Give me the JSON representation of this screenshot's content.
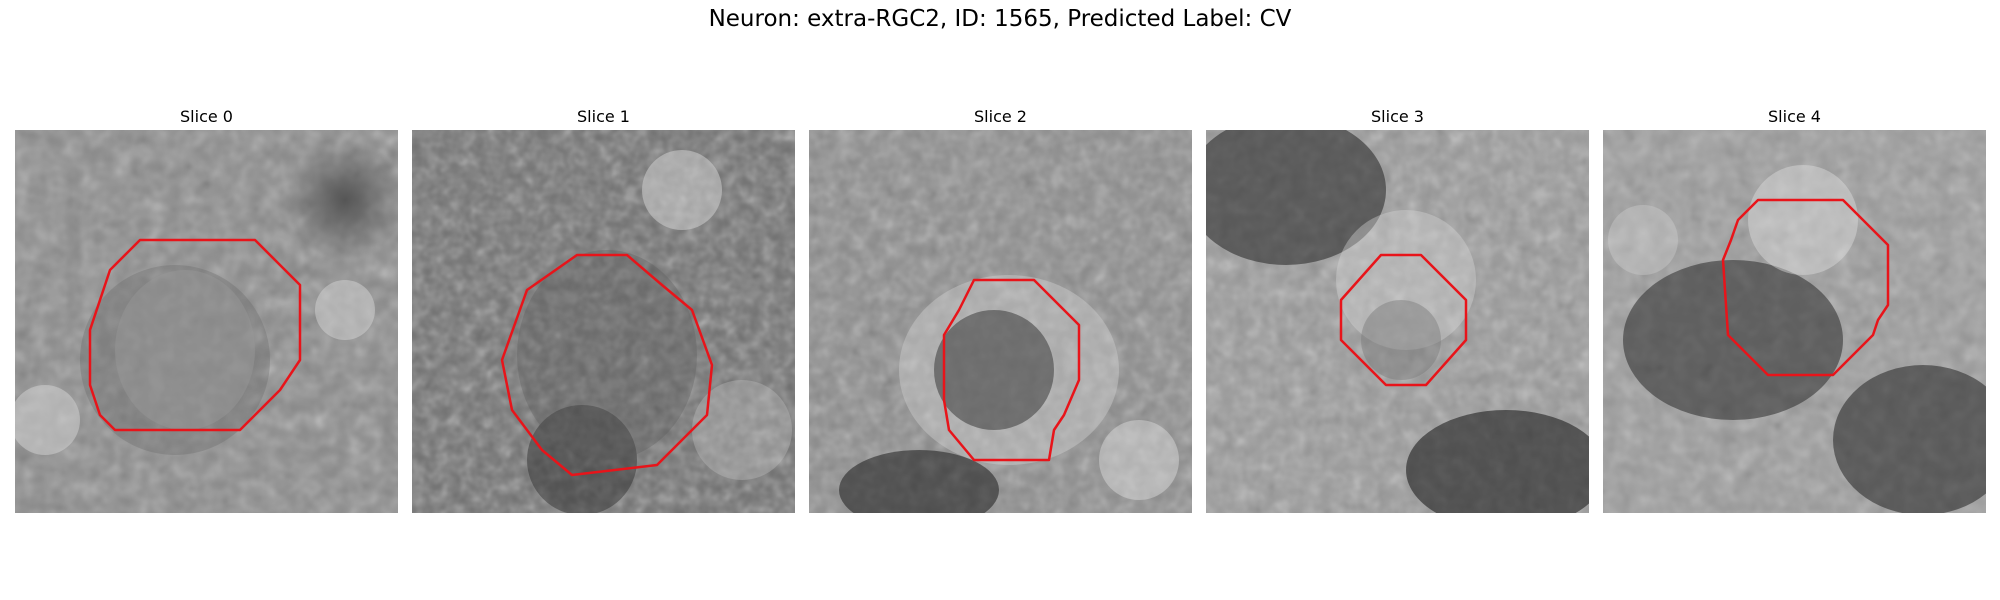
{
  "figure": {
    "title": "Neuron: extra-RGC2, ID: 1565, Predicted Label: CV"
  },
  "colors": {
    "contour": "#e8141a",
    "background": "#ffffff"
  },
  "panels": [
    {
      "title": "Slice 0"
    },
    {
      "title": "Slice 1"
    },
    {
      "title": "Slice 2"
    },
    {
      "title": "Slice 3"
    },
    {
      "title": "Slice 4"
    }
  ]
}
